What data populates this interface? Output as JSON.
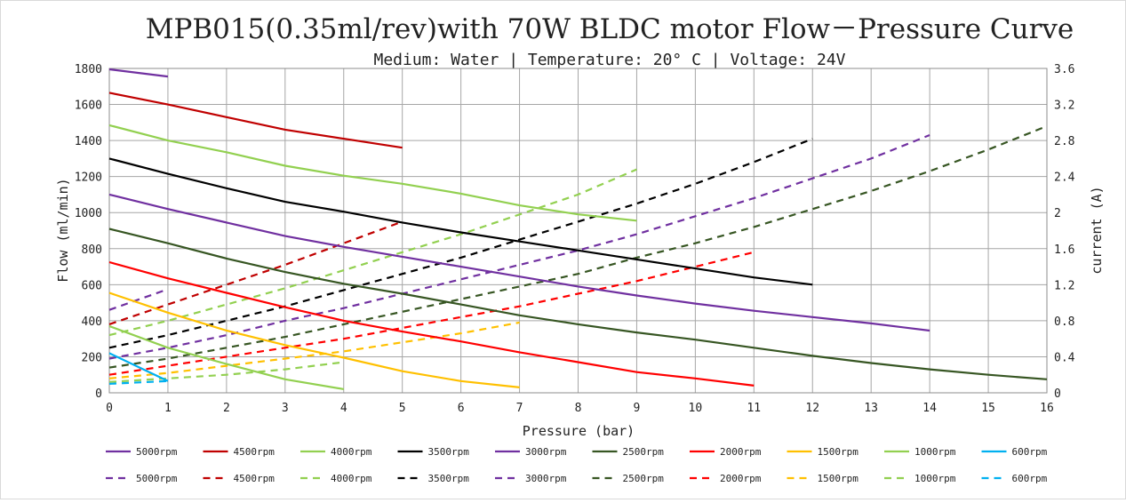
{
  "chart_data": {
    "type": "line",
    "title": "MPB015(0.35ml/rev)with 70W BLDC motor Flow－Pressure Curve",
    "subtitle": "Medium: Water | Temperature: 20° C | Voltage: 24V",
    "xlabel": "Pressure (bar)",
    "ylabel": "Flow (ml/min)",
    "y2label": "current (A)",
    "xlim": [
      0,
      16
    ],
    "ylim": [
      0,
      1800
    ],
    "y2lim": [
      0,
      3.6
    ],
    "xticks": [
      "0",
      "1",
      "2",
      "3",
      "4",
      "5",
      "6",
      "7",
      "8",
      "9",
      "10",
      "11",
      "12",
      "13",
      "14",
      "15",
      "16"
    ],
    "yticks": [
      "0",
      "200",
      "400",
      "600",
      "800",
      "1000",
      "1200",
      "1400",
      "1600",
      "1800"
    ],
    "y2ticks": [
      "0",
      "0.4",
      "0.8",
      "1.2",
      "1.6",
      "2",
      "2.4",
      "2.8",
      "3.2",
      "3.6"
    ],
    "grid": true,
    "legend_position": "bottom",
    "flow_series": [
      {
        "name": "5000rpm",
        "color": "#7030a0",
        "x": [
          0,
          1
        ],
        "y": [
          1795,
          1755
        ]
      },
      {
        "name": "4500rpm",
        "color": "#c00000",
        "x": [
          0,
          1,
          2,
          3,
          4,
          5
        ],
        "y": [
          1665,
          1600,
          1530,
          1460,
          1410,
          1360
        ]
      },
      {
        "name": "4000rpm",
        "color": "#92d050",
        "x": [
          0,
          1,
          2,
          3,
          4,
          5,
          6,
          7,
          8,
          9
        ],
        "y": [
          1485,
          1400,
          1335,
          1260,
          1205,
          1160,
          1105,
          1040,
          990,
          955
        ]
      },
      {
        "name": "3500rpm",
        "color": "#000000",
        "x": [
          0,
          1,
          2,
          3,
          4,
          5,
          6,
          7,
          8,
          9,
          10,
          11,
          12
        ],
        "y": [
          1300,
          1215,
          1135,
          1060,
          1005,
          945,
          890,
          840,
          790,
          740,
          690,
          640,
          600
        ]
      },
      {
        "name": "3000rpm",
        "color": "#7030a0",
        "x": [
          0,
          1,
          2,
          3,
          4,
          5,
          6,
          7,
          8,
          9,
          10,
          11,
          12,
          13,
          14
        ],
        "y": [
          1100,
          1020,
          945,
          870,
          810,
          755,
          700,
          645,
          590,
          540,
          495,
          455,
          420,
          385,
          345
        ]
      },
      {
        "name": "2500rpm",
        "color": "#375623",
        "x": [
          0,
          1,
          2,
          3,
          4,
          5,
          6,
          7,
          8,
          9,
          10,
          11,
          12,
          13,
          14,
          15,
          16
        ],
        "y": [
          910,
          830,
          745,
          670,
          605,
          550,
          490,
          430,
          380,
          335,
          295,
          250,
          205,
          165,
          130,
          100,
          75
        ]
      },
      {
        "name": "2000rpm",
        "color": "#ff0000",
        "x": [
          0,
          1,
          2,
          3,
          4,
          5,
          6,
          7,
          8,
          9,
          10,
          11
        ],
        "y": [
          725,
          635,
          555,
          475,
          400,
          340,
          285,
          225,
          170,
          115,
          80,
          40
        ]
      },
      {
        "name": "1500rpm",
        "color": "#ffc000",
        "x": [
          0,
          1,
          2,
          3,
          4,
          5,
          6,
          7
        ],
        "y": [
          555,
          445,
          345,
          265,
          195,
          120,
          65,
          30
        ]
      },
      {
        "name": "1000rpm",
        "color": "#92d050",
        "x": [
          0,
          1,
          2,
          3,
          4
        ],
        "y": [
          370,
          250,
          160,
          75,
          20
        ]
      },
      {
        "name": "600rpm",
        "color": "#00b0f0",
        "x": [
          0,
          1
        ],
        "y": [
          220,
          65
        ]
      }
    ],
    "current_series": [
      {
        "name": "5000rpm",
        "color": "#7030a0",
        "x": [
          0,
          1
        ],
        "y": [
          0.92,
          1.15
        ]
      },
      {
        "name": "4500rpm",
        "color": "#c00000",
        "x": [
          0,
          1,
          2,
          3,
          4,
          5
        ],
        "y": [
          0.76,
          0.98,
          1.2,
          1.42,
          1.66,
          1.9
        ]
      },
      {
        "name": "4000rpm",
        "color": "#92d050",
        "x": [
          0,
          1,
          2,
          3,
          4,
          5,
          6,
          7,
          8,
          9
        ],
        "y": [
          0.64,
          0.8,
          0.98,
          1.16,
          1.36,
          1.56,
          1.76,
          1.98,
          2.2,
          2.48
        ]
      },
      {
        "name": "3500rpm",
        "color": "#000000",
        "x": [
          0,
          1,
          2,
          3,
          4,
          5,
          6,
          7,
          8,
          9,
          10,
          11,
          12
        ],
        "y": [
          0.5,
          0.64,
          0.8,
          0.96,
          1.14,
          1.32,
          1.5,
          1.7,
          1.9,
          2.1,
          2.32,
          2.56,
          2.82
        ]
      },
      {
        "name": "3000rpm",
        "color": "#7030a0",
        "x": [
          0,
          1,
          2,
          3,
          4,
          5,
          6,
          7,
          8,
          9,
          10,
          11,
          12,
          13,
          14
        ],
        "y": [
          0.38,
          0.5,
          0.64,
          0.8,
          0.94,
          1.1,
          1.26,
          1.42,
          1.58,
          1.76,
          1.96,
          2.16,
          2.38,
          2.6,
          2.86
        ]
      },
      {
        "name": "2500rpm",
        "color": "#375623",
        "x": [
          0,
          1,
          2,
          3,
          4,
          5,
          6,
          7,
          8,
          9,
          10,
          11,
          12,
          13,
          14,
          15,
          16
        ],
        "y": [
          0.28,
          0.38,
          0.5,
          0.62,
          0.76,
          0.9,
          1.04,
          1.18,
          1.32,
          1.5,
          1.66,
          1.84,
          2.04,
          2.24,
          2.46,
          2.7,
          2.96
        ]
      },
      {
        "name": "2000rpm",
        "color": "#ff0000",
        "x": [
          0,
          1,
          2,
          3,
          4,
          5,
          6,
          7,
          8,
          9,
          10,
          11
        ],
        "y": [
          0.2,
          0.3,
          0.4,
          0.5,
          0.6,
          0.72,
          0.84,
          0.96,
          1.1,
          1.24,
          1.4,
          1.56
        ]
      },
      {
        "name": "1500rpm",
        "color": "#ffc000",
        "x": [
          0,
          1,
          2,
          3,
          4,
          5,
          6,
          7
        ],
        "y": [
          0.16,
          0.22,
          0.3,
          0.38,
          0.46,
          0.56,
          0.66,
          0.78
        ]
      },
      {
        "name": "1000rpm",
        "color": "#92d050",
        "x": [
          0,
          1,
          2,
          3,
          4
        ],
        "y": [
          0.12,
          0.16,
          0.2,
          0.26,
          0.34
        ]
      },
      {
        "name": "600rpm",
        "color": "#00b0f0",
        "x": [
          0,
          1
        ],
        "y": [
          0.1,
          0.13
        ]
      }
    ]
  }
}
